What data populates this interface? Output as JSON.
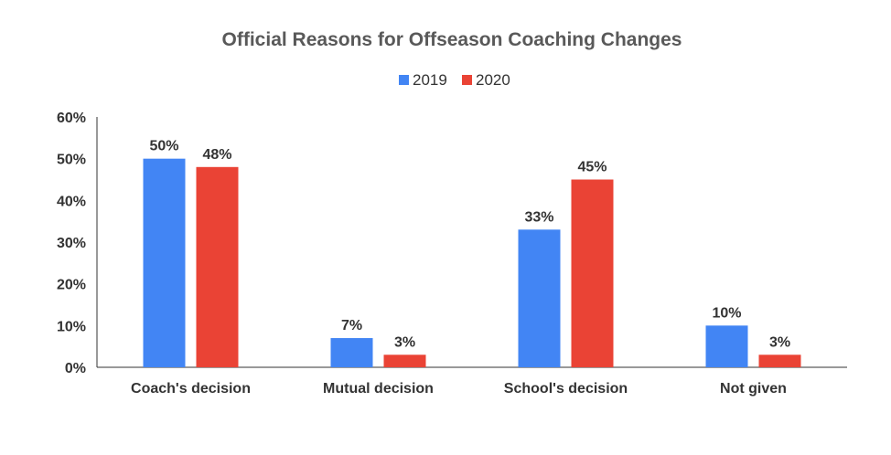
{
  "chart_data": {
    "type": "bar",
    "title": "Official Reasons for Offseason Coaching Changes",
    "categories": [
      "Coach's decision",
      "Mutual decision",
      "School's decision",
      "Not given"
    ],
    "series": [
      {
        "name": "2019",
        "color": "#4285f4",
        "values": [
          50,
          7,
          33,
          10
        ],
        "labels": [
          "50%",
          "7%",
          "33%",
          "10%"
        ]
      },
      {
        "name": "2020",
        "color": "#ea4335",
        "values": [
          48,
          3,
          45,
          3
        ],
        "labels": [
          "48%",
          "3%",
          "45%",
          "3%"
        ]
      }
    ],
    "ylim": [
      0,
      60
    ],
    "yticks": [
      "0%",
      "10%",
      "20%",
      "30%",
      "40%",
      "50%",
      "60%"
    ],
    "legend": "top",
    "grid": false
  }
}
